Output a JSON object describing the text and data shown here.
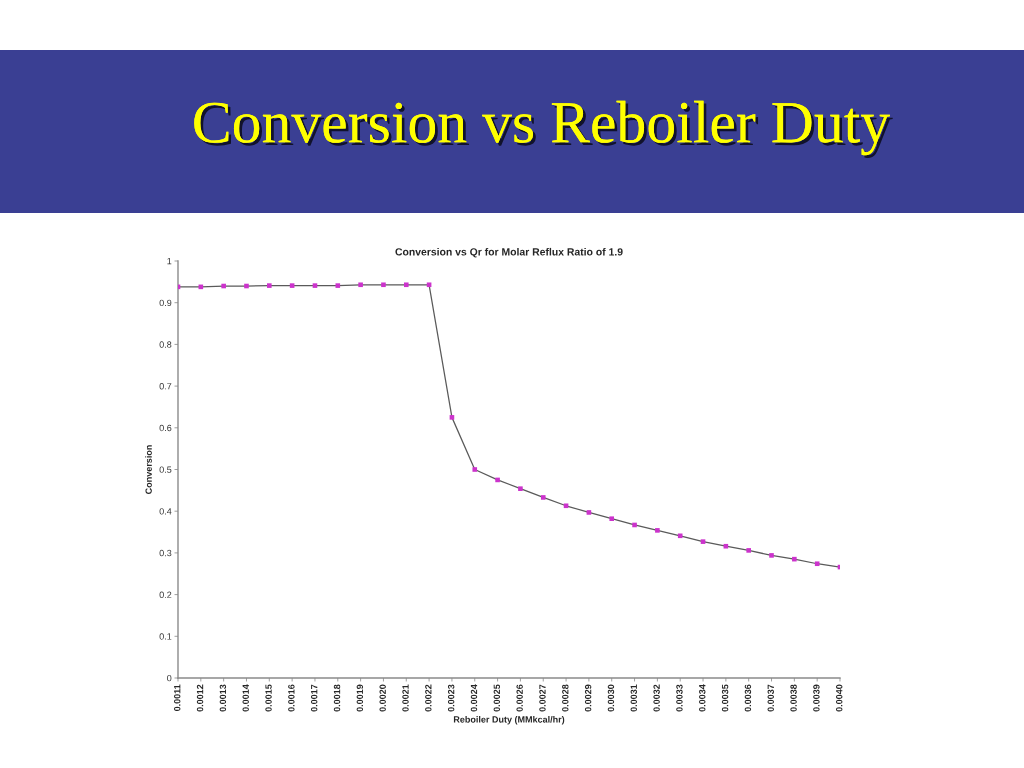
{
  "chart_data": {
    "type": "line",
    "title": "Conversion vs Reboiler Duty",
    "subtitle": "Conversion vs Qr for Molar Reflux Ratio of 1.9",
    "xlabel": "Reboiler Duty (MMkcal/hr)",
    "ylabel": "Conversion",
    "categories": [
      "0.0011",
      "0.0012",
      "0.0013",
      "0.0014",
      "0.0015",
      "0.0016",
      "0.0017",
      "0.0018",
      "0.0019",
      "0.0020",
      "0.0021",
      "0.0022",
      "0.0023",
      "0.0024",
      "0.0025",
      "0.0026",
      "0.0027",
      "0.0028",
      "0.0029",
      "0.0030",
      "0.0031",
      "0.0032",
      "0.0033",
      "0.0034",
      "0.0035",
      "0.0036",
      "0.0037",
      "0.0038",
      "0.0039",
      "0.0040"
    ],
    "series": [
      {
        "color": "#5a5a5a",
        "colors": [
          "#cc33cc",
          "#cc33cc",
          "#cc33cc",
          "#cc33cc",
          "#cc33cc",
          "#cc33cc",
          "#cc33cc",
          "#cc33cc",
          "#cc33cc",
          "#cc33cc",
          "#cc33cc",
          "#cc33cc",
          "#cc33cc",
          "#cc33cc",
          "#cc33cc",
          "#cc33cc",
          "#cc33cc",
          "#cc33cc",
          "#cc33cc",
          "#cc33cc",
          "#cc33cc",
          "#cc33cc",
          "#cc33cc",
          "#cc33cc",
          "#cc33cc",
          "#cc33cc",
          "#cc33cc",
          "#cc33cc",
          "#cc33cc",
          "#cc33cc"
        ],
        "values": [
          0.938,
          0.938,
          0.94,
          0.94,
          0.941,
          0.941,
          0.941,
          0.941,
          0.943,
          0.943,
          0.943,
          0.943,
          0.625,
          0.5,
          0.475,
          0.454,
          0.433,
          0.413,
          0.397,
          0.382,
          0.367,
          0.354,
          0.341,
          0.327,
          0.316,
          0.306,
          0.294,
          0.285,
          0.274,
          0.266
        ]
      }
    ],
    "ylim": [
      0,
      1
    ],
    "yticks": [
      0,
      0.1,
      0.2,
      0.3,
      0.4,
      0.5,
      0.6,
      0.7,
      0.8,
      0.9,
      1
    ],
    "marker": "square",
    "line_style": "solid",
    "grid": false
  }
}
